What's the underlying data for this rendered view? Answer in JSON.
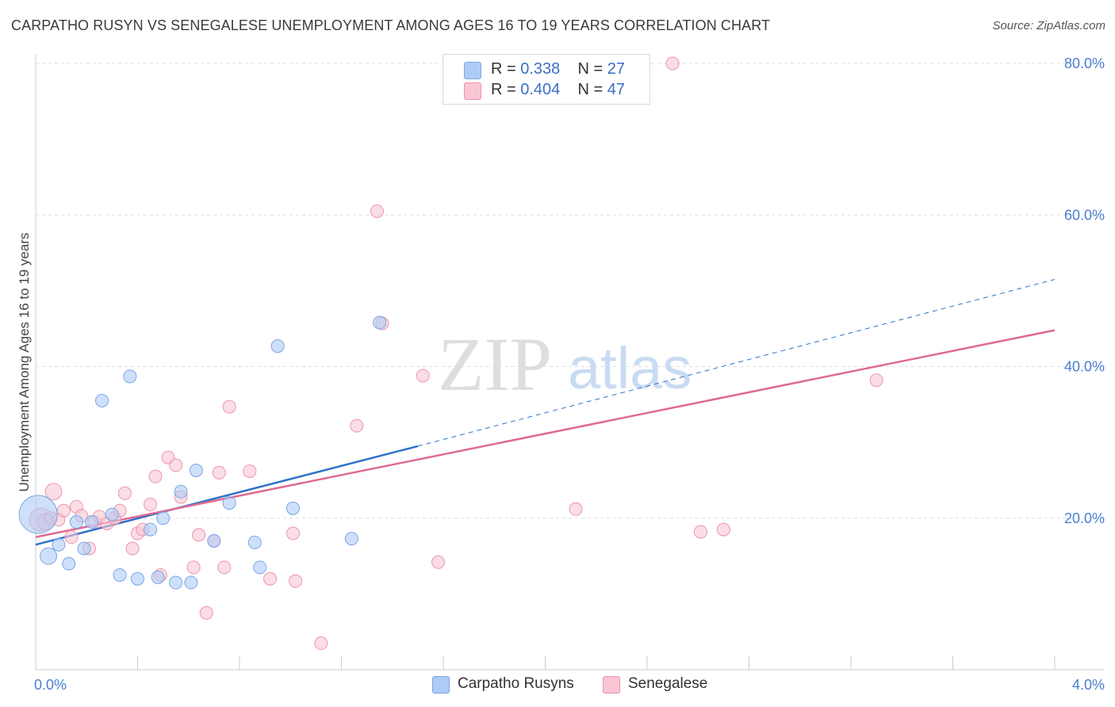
{
  "title": "CARPATHO RUSYN VS SENEGALESE UNEMPLOYMENT AMONG AGES 16 TO 19 YEARS CORRELATION CHART",
  "source": "Source: ZipAtlas.com",
  "watermark": {
    "zip": "ZIP",
    "atlas": "atlas"
  },
  "legend_top": [
    {
      "r_label": "R =",
      "r_value": "0.338",
      "n_label": "N =",
      "n_value": "27",
      "color": "#aecbf5",
      "border": "#7aa6e6"
    },
    {
      "r_label": "R =",
      "r_value": "0.404",
      "n_label": "N =",
      "n_value": "47",
      "color": "#f9c6d4",
      "border": "#ee93ad"
    }
  ],
  "legend_bottom": [
    {
      "label": "Carpatho Rusyns",
      "color": "#aecbf5",
      "border": "#7aa6e6"
    },
    {
      "label": "Senegalese",
      "color": "#f9c6d4",
      "border": "#ee93ad"
    }
  ],
  "chart_data": {
    "type": "scatter",
    "title": "CARPATHO RUSYN VS SENEGALESE UNEMPLOYMENT AMONG AGES 16 TO 19 YEARS CORRELATION CHART",
    "xlabel": "",
    "ylabel": "Unemployment Among Ages 16 to 19 years",
    "xlim": [
      0,
      4.0
    ],
    "ylim": [
      0,
      80
    ],
    "x_tick_labels": [
      "0.0%",
      "4.0%"
    ],
    "y_tick_labels": [
      "20.0%",
      "40.0%",
      "60.0%",
      "80.0%"
    ],
    "y_ticks": [
      20,
      40,
      60,
      80
    ],
    "grid": true,
    "series": [
      {
        "name": "Carpatho Rusyns",
        "color": "#7aa6e6",
        "fill": "#aecbf5",
        "line_color": "#2f72c9",
        "trend": {
          "x0": 0.0,
          "y0": 16.5,
          "x1": 1.5,
          "y1": 29.5,
          "x_dash_end": 4.0,
          "y_dash_end": 51.5
        },
        "points": [
          {
            "x": 0.01,
            "y": 20.5,
            "s": 3
          },
          {
            "x": 0.05,
            "y": 15.0,
            "s": 1.3
          },
          {
            "x": 0.09,
            "y": 16.5,
            "s": 1
          },
          {
            "x": 0.13,
            "y": 14.0,
            "s": 1
          },
          {
            "x": 0.16,
            "y": 19.5,
            "s": 1
          },
          {
            "x": 0.19,
            "y": 16.0,
            "s": 1
          },
          {
            "x": 0.22,
            "y": 19.5,
            "s": 1
          },
          {
            "x": 0.26,
            "y": 35.5,
            "s": 1
          },
          {
            "x": 0.3,
            "y": 20.5,
            "s": 1
          },
          {
            "x": 0.33,
            "y": 12.5,
            "s": 1
          },
          {
            "x": 0.37,
            "y": 38.7,
            "s": 1
          },
          {
            "x": 0.4,
            "y": 12.0,
            "s": 1
          },
          {
            "x": 0.45,
            "y": 18.5,
            "s": 1
          },
          {
            "x": 0.48,
            "y": 12.2,
            "s": 1
          },
          {
            "x": 0.5,
            "y": 20.0,
            "s": 1
          },
          {
            "x": 0.55,
            "y": 11.5,
            "s": 1
          },
          {
            "x": 0.57,
            "y": 23.5,
            "s": 1
          },
          {
            "x": 0.61,
            "y": 11.5,
            "s": 1
          },
          {
            "x": 0.63,
            "y": 26.3,
            "s": 1
          },
          {
            "x": 0.7,
            "y": 17.0,
            "s": 1
          },
          {
            "x": 0.76,
            "y": 22.0,
            "s": 1
          },
          {
            "x": 0.86,
            "y": 16.8,
            "s": 1
          },
          {
            "x": 0.88,
            "y": 13.5,
            "s": 1
          },
          {
            "x": 0.95,
            "y": 42.7,
            "s": 1
          },
          {
            "x": 1.01,
            "y": 21.3,
            "s": 1
          },
          {
            "x": 1.24,
            "y": 17.3,
            "s": 1
          },
          {
            "x": 1.35,
            "y": 45.8,
            "s": 1
          }
        ]
      },
      {
        "name": "Senegalese",
        "color": "#ee93ad",
        "fill": "#f9c6d4",
        "line_color": "#e06a90",
        "trend": {
          "x0": 0.0,
          "y0": 17.5,
          "x1": 4.0,
          "y1": 44.8
        },
        "points": [
          {
            "x": 0.02,
            "y": 19.8,
            "s": 1.8
          },
          {
            "x": 0.04,
            "y": 19.5,
            "s": 1.3
          },
          {
            "x": 0.06,
            "y": 20.0,
            "s": 1
          },
          {
            "x": 0.07,
            "y": 23.5,
            "s": 1.3
          },
          {
            "x": 0.09,
            "y": 19.8,
            "s": 1
          },
          {
            "x": 0.11,
            "y": 21.0,
            "s": 1
          },
          {
            "x": 0.14,
            "y": 17.5,
            "s": 1
          },
          {
            "x": 0.16,
            "y": 21.5,
            "s": 1
          },
          {
            "x": 0.18,
            "y": 20.3,
            "s": 1
          },
          {
            "x": 0.21,
            "y": 16.0,
            "s": 1
          },
          {
            "x": 0.23,
            "y": 19.5,
            "s": 1
          },
          {
            "x": 0.25,
            "y": 20.2,
            "s": 1
          },
          {
            "x": 0.28,
            "y": 19.3,
            "s": 1
          },
          {
            "x": 0.31,
            "y": 20.0,
            "s": 1
          },
          {
            "x": 0.33,
            "y": 21.0,
            "s": 1
          },
          {
            "x": 0.35,
            "y": 23.3,
            "s": 1
          },
          {
            "x": 0.38,
            "y": 16.0,
            "s": 1
          },
          {
            "x": 0.4,
            "y": 18.0,
            "s": 1
          },
          {
            "x": 0.42,
            "y": 18.5,
            "s": 1
          },
          {
            "x": 0.45,
            "y": 21.8,
            "s": 1
          },
          {
            "x": 0.47,
            "y": 25.5,
            "s": 1
          },
          {
            "x": 0.49,
            "y": 12.5,
            "s": 1
          },
          {
            "x": 0.52,
            "y": 28.0,
            "s": 1
          },
          {
            "x": 0.55,
            "y": 27.0,
            "s": 1
          },
          {
            "x": 0.57,
            "y": 22.8,
            "s": 1
          },
          {
            "x": 0.62,
            "y": 13.5,
            "s": 1
          },
          {
            "x": 0.64,
            "y": 17.8,
            "s": 1
          },
          {
            "x": 0.67,
            "y": 7.5,
            "s": 1
          },
          {
            "x": 0.7,
            "y": 17.0,
            "s": 1
          },
          {
            "x": 0.72,
            "y": 26.0,
            "s": 1
          },
          {
            "x": 0.74,
            "y": 13.5,
            "s": 1
          },
          {
            "x": 0.76,
            "y": 34.7,
            "s": 1
          },
          {
            "x": 0.84,
            "y": 26.2,
            "s": 1
          },
          {
            "x": 0.92,
            "y": 12.0,
            "s": 1
          },
          {
            "x": 1.01,
            "y": 18.0,
            "s": 1
          },
          {
            "x": 1.02,
            "y": 11.7,
            "s": 1
          },
          {
            "x": 1.12,
            "y": 3.5,
            "s": 1
          },
          {
            "x": 1.26,
            "y": 32.2,
            "s": 1
          },
          {
            "x": 1.34,
            "y": 60.5,
            "s": 1
          },
          {
            "x": 1.36,
            "y": 45.7,
            "s": 1
          },
          {
            "x": 1.52,
            "y": 38.8,
            "s": 1
          },
          {
            "x": 1.58,
            "y": 14.2,
            "s": 1
          },
          {
            "x": 2.12,
            "y": 21.2,
            "s": 1
          },
          {
            "x": 2.5,
            "y": 80.0,
            "s": 1
          },
          {
            "x": 2.61,
            "y": 18.2,
            "s": 1
          },
          {
            "x": 2.7,
            "y": 18.5,
            "s": 1
          },
          {
            "x": 3.3,
            "y": 38.2,
            "s": 1
          }
        ]
      }
    ]
  }
}
